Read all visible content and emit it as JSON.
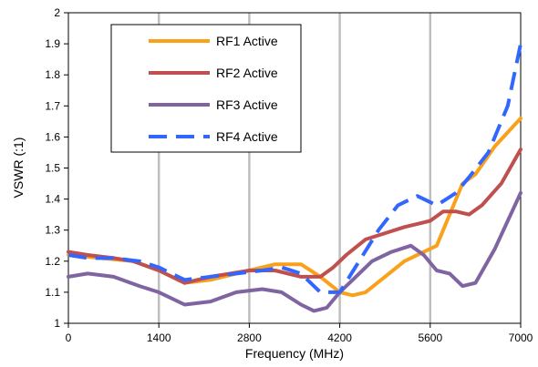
{
  "chart_data": {
    "type": "line",
    "xlabel": "Frequency (MHz)",
    "ylabel": "VSWR (:1)",
    "xlim": [
      0,
      7000
    ],
    "ylim": [
      1,
      2
    ],
    "x_ticks": [
      "0",
      "1400",
      "2800",
      "4200",
      "5600",
      "7000"
    ],
    "y_ticks": [
      "1",
      "1.1",
      "1.2",
      "1.3",
      "1.4",
      "1.5",
      "1.6",
      "1.7",
      "1.8",
      "1.9",
      "2"
    ],
    "grid": "vertical",
    "legend_position": "top-left",
    "series": [
      {
        "name": "RF1 Active",
        "color": "#F9A11B",
        "dash": "solid",
        "x": [
          0,
          500,
          1000,
          1400,
          1800,
          2200,
          2800,
          3200,
          3600,
          3900,
          4200,
          4400,
          4600,
          4900,
          5200,
          5500,
          5700,
          5900,
          6100,
          6300,
          6600,
          7000
        ],
        "y": [
          1.22,
          1.21,
          1.2,
          1.17,
          1.13,
          1.14,
          1.17,
          1.19,
          1.19,
          1.15,
          1.1,
          1.09,
          1.1,
          1.15,
          1.2,
          1.23,
          1.25,
          1.35,
          1.45,
          1.48,
          1.57,
          1.66
        ]
      },
      {
        "name": "RF2 Active",
        "color": "#C0504D",
        "dash": "solid",
        "x": [
          0,
          300,
          700,
          1000,
          1400,
          1800,
          2200,
          2800,
          3200,
          3600,
          3900,
          4100,
          4300,
          4600,
          4900,
          5200,
          5400,
          5600,
          5800,
          6000,
          6200,
          6400,
          6700,
          7000
        ],
        "y": [
          1.23,
          1.22,
          1.21,
          1.2,
          1.17,
          1.13,
          1.15,
          1.17,
          1.17,
          1.15,
          1.15,
          1.18,
          1.22,
          1.27,
          1.29,
          1.31,
          1.32,
          1.33,
          1.36,
          1.36,
          1.35,
          1.38,
          1.45,
          1.56
        ]
      },
      {
        "name": "RF3 Active",
        "color": "#8064A2",
        "dash": "solid",
        "x": [
          0,
          300,
          700,
          1100,
          1400,
          1800,
          2200,
          2600,
          3000,
          3300,
          3600,
          3800,
          4000,
          4200,
          4400,
          4700,
          5000,
          5300,
          5500,
          5700,
          5900,
          6100,
          6300,
          6600,
          7000
        ],
        "y": [
          1.15,
          1.16,
          1.15,
          1.12,
          1.1,
          1.06,
          1.07,
          1.1,
          1.11,
          1.1,
          1.06,
          1.04,
          1.05,
          1.1,
          1.14,
          1.2,
          1.23,
          1.25,
          1.22,
          1.17,
          1.16,
          1.12,
          1.13,
          1.24,
          1.42
        ]
      },
      {
        "name": "RF4 Active",
        "color": "#3366FF",
        "dash": "dashed",
        "x": [
          0,
          300,
          700,
          1100,
          1400,
          1800,
          2200,
          2600,
          3000,
          3300,
          3600,
          3900,
          4200,
          4500,
          4800,
          5100,
          5400,
          5700,
          6000,
          6200,
          6500,
          6800,
          7000
        ],
        "y": [
          1.22,
          1.21,
          1.21,
          1.2,
          1.18,
          1.14,
          1.15,
          1.16,
          1.17,
          1.18,
          1.16,
          1.1,
          1.1,
          1.2,
          1.3,
          1.38,
          1.41,
          1.38,
          1.42,
          1.47,
          1.55,
          1.7,
          1.9
        ]
      }
    ]
  }
}
